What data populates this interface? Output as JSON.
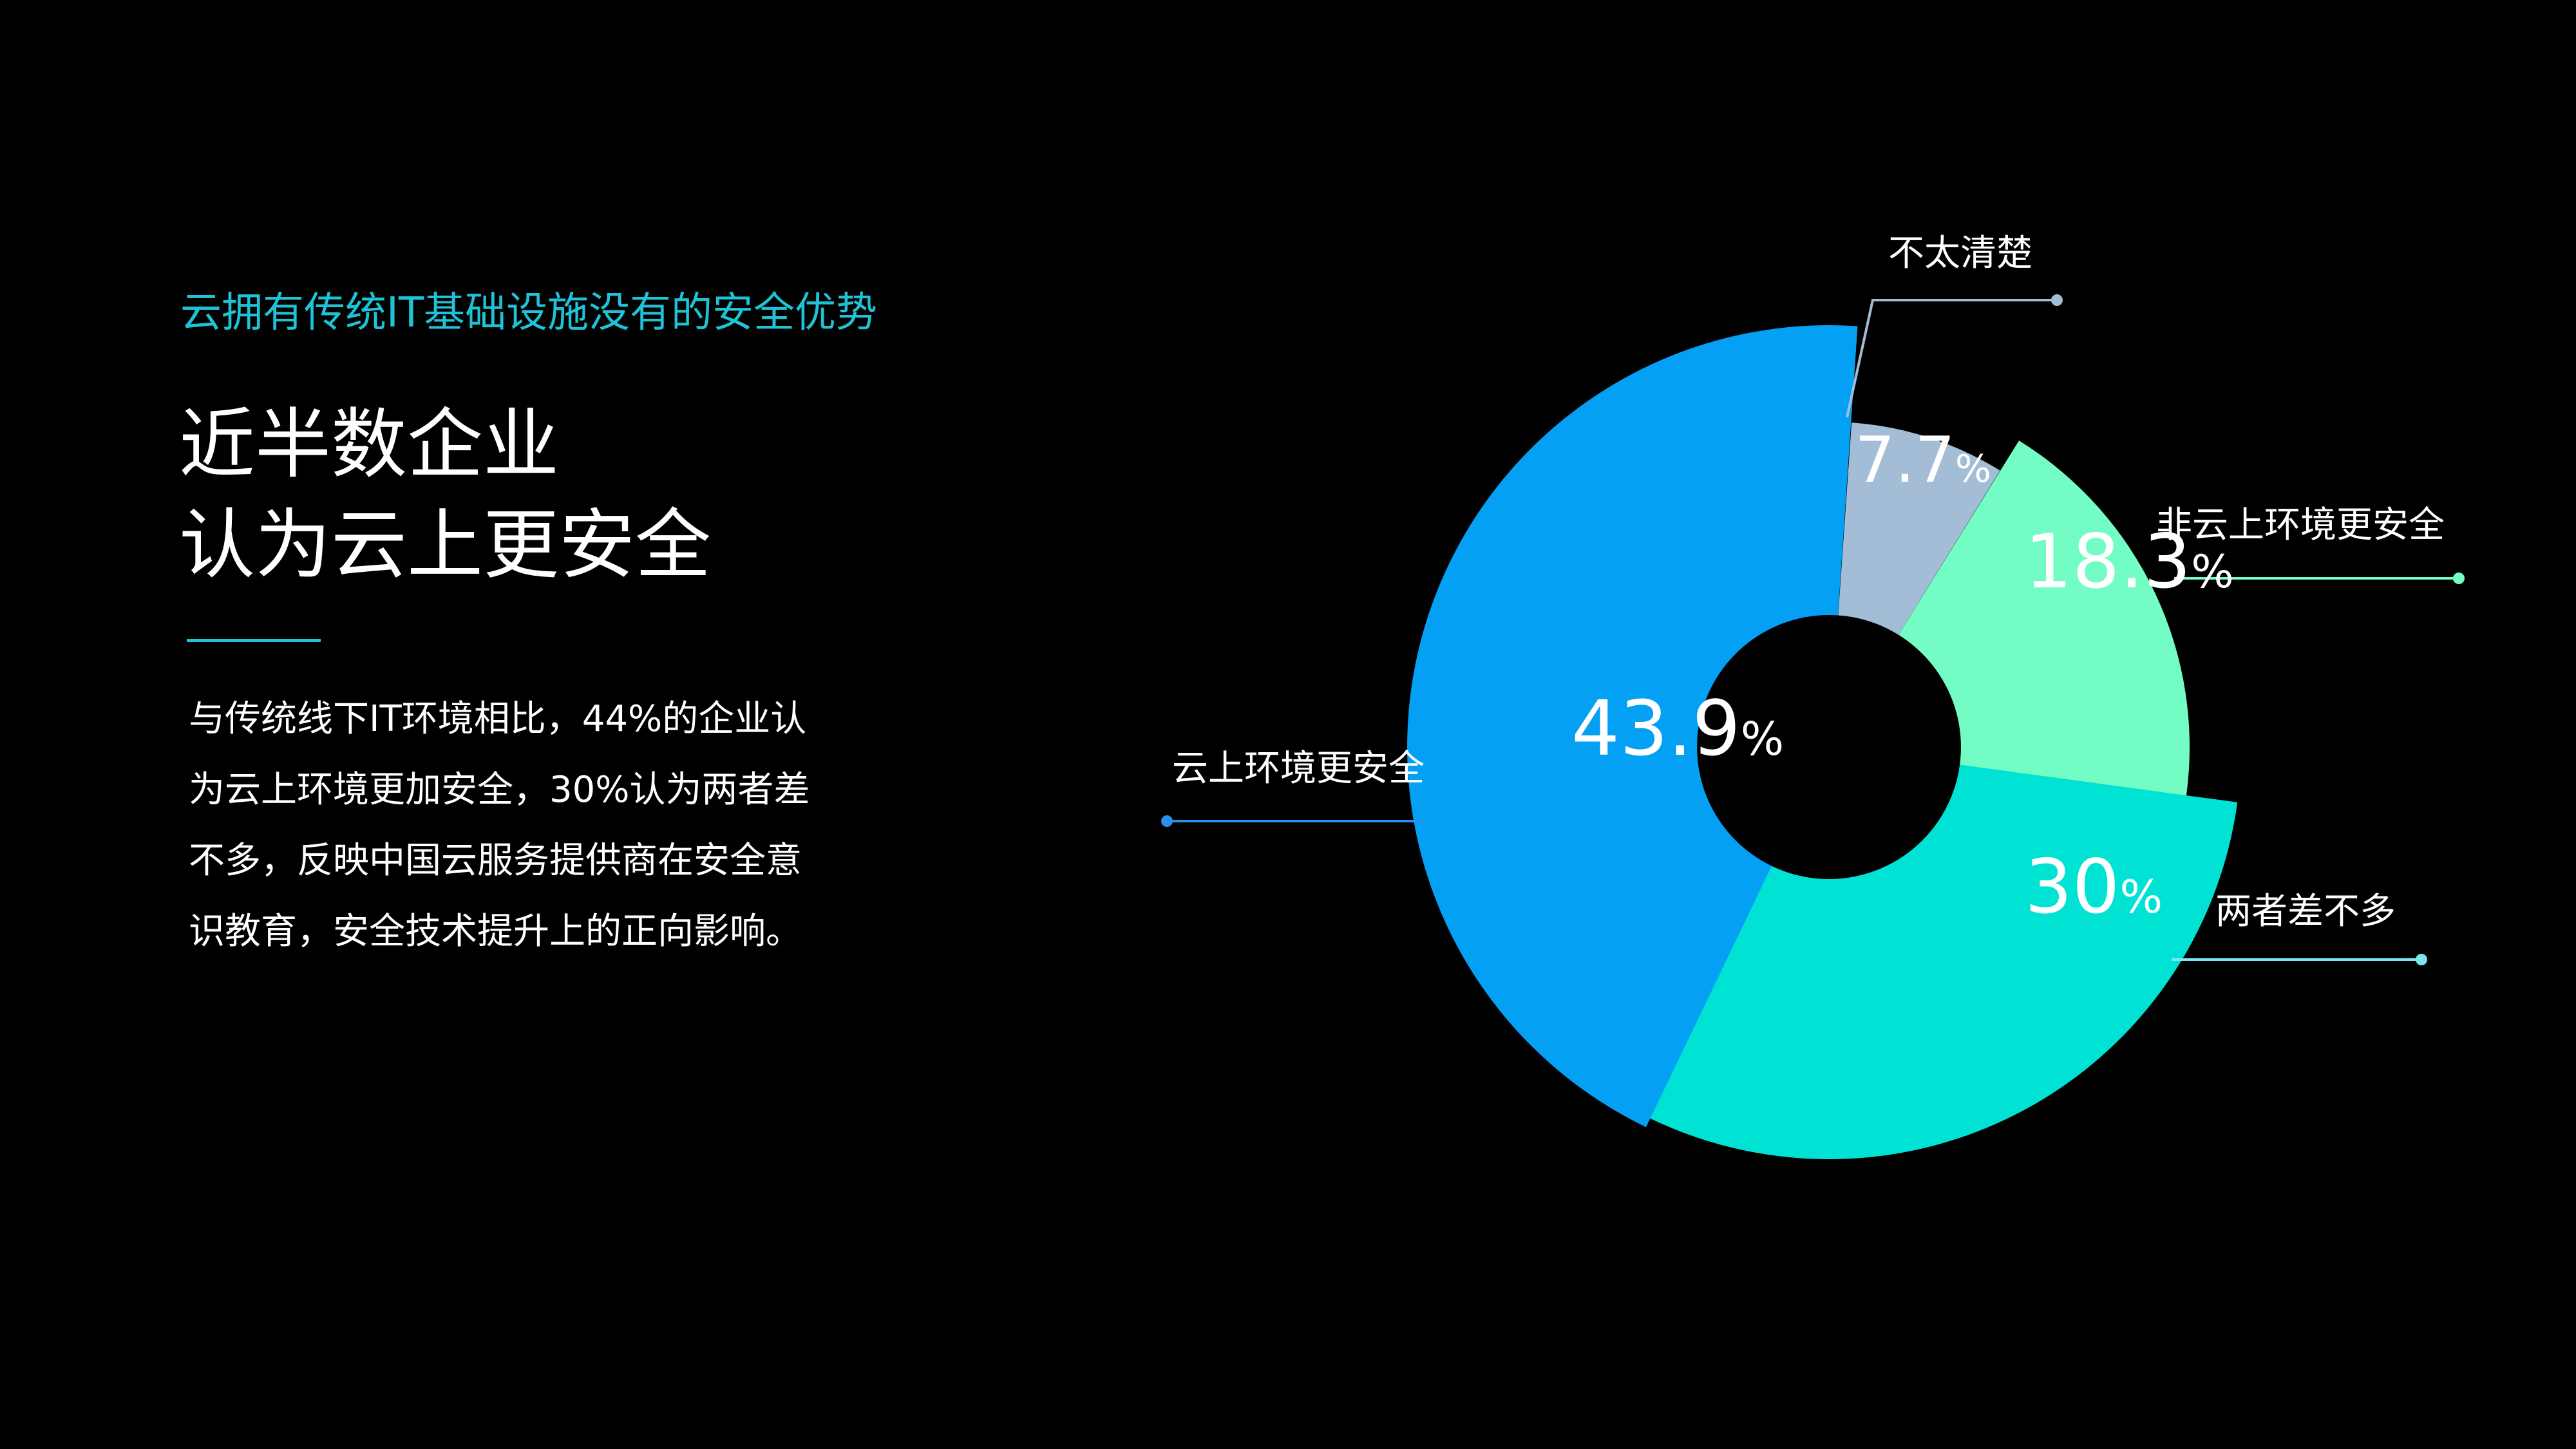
{
  "slide": {
    "subtitle": "云拥有传统IT基础设施没有的安全优势",
    "headline": [
      "近半数企业",
      "认为云上更安全"
    ],
    "description": [
      "与传统线下IT环境相比，44%的企业认",
      "为云上环境更加安全，30%认为两者差",
      "不多，反映中国云服务提供商在安全意",
      "识教育，安全技术提升上的正向影响。"
    ],
    "accent_color": "#1fc3d8",
    "background_color": "#000000"
  },
  "chart_data": {
    "type": "pie",
    "variant": "rose-donut",
    "unit": "%",
    "categories": [
      "不太清楚",
      "非云上环境更安全",
      "两者差不多",
      "云上环境更安全"
    ],
    "values": [
      7.7,
      18.3,
      30,
      43.9
    ],
    "value_labels": [
      "7.7",
      "18.3",
      "30",
      "43.9"
    ],
    "colors": [
      "#a3bdd6",
      "#73fdc4",
      "#00e3d4",
      "#04a0f4"
    ],
    "leader_colors": [
      "#a3bdd6",
      "#73fdc4",
      "#7ae6ef",
      "#2c8fe8"
    ],
    "label_color": "#ffffff"
  }
}
